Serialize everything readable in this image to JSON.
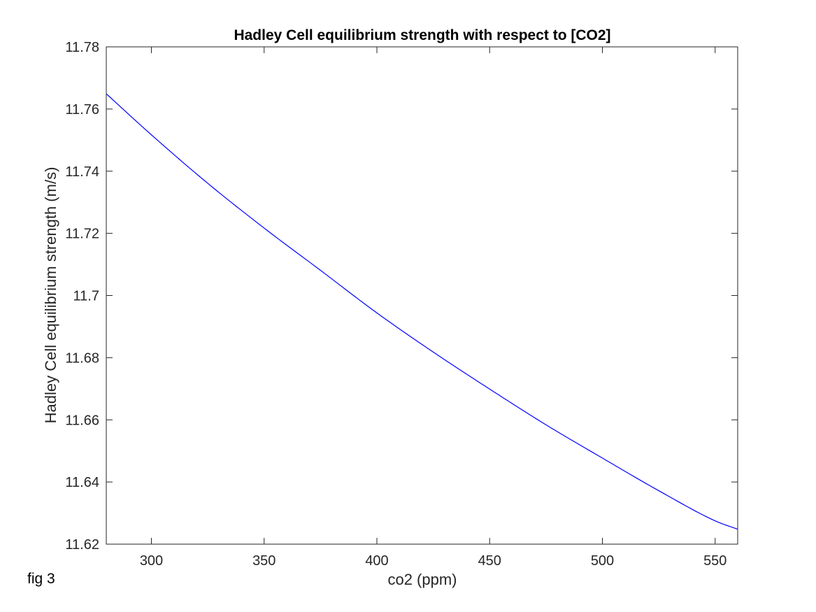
{
  "caption": "fig 3",
  "chart_data": {
    "type": "line",
    "title": "Hadley Cell equilibrium strength with respect to [CO2]",
    "xlabel": "co2 (ppm)",
    "ylabel": "Hadley Cell equilibrium strength (m/s)",
    "xlim": [
      280,
      560
    ],
    "ylim": [
      11.62,
      11.78
    ],
    "xticks": [
      300,
      350,
      400,
      450,
      500,
      550
    ],
    "xtick_labels": [
      "300",
      "350",
      "400",
      "450",
      "500",
      "550"
    ],
    "yticks": [
      11.62,
      11.64,
      11.66,
      11.68,
      11.7,
      11.72,
      11.74,
      11.76,
      11.78
    ],
    "ytick_labels": [
      "11.62",
      "11.64",
      "11.66",
      "11.68",
      "11.7",
      "11.72",
      "11.74",
      "11.76",
      "11.78"
    ],
    "grid": false,
    "box": true,
    "colors": {
      "line": "#0000ff",
      "axes": "#262626",
      "background": "#ffffff"
    },
    "series": [
      {
        "x": [
          280,
          300,
          325,
          350,
          375,
          400,
          425,
          450,
          475,
          500,
          525,
          550,
          560
        ],
        "y": [
          11.7649,
          11.7517,
          11.7361,
          11.7217,
          11.7081,
          11.6944,
          11.6818,
          11.6699,
          11.6584,
          11.6477,
          11.6372,
          11.6275,
          11.6248
        ]
      }
    ]
  }
}
